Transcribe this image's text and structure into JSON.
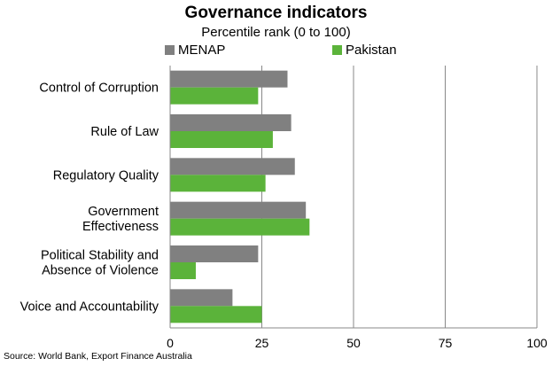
{
  "chart_data": {
    "type": "bar",
    "orientation": "horizontal",
    "title": "Governance indicators",
    "subtitle": "Percentile rank (0 to 100)",
    "categories": [
      [
        "Control of Corruption"
      ],
      [
        "Rule of Law"
      ],
      [
        "Regulatory Quality"
      ],
      [
        "Government",
        "Effectiveness"
      ],
      [
        "Political Stability and",
        "Absence of Violence"
      ],
      [
        "Voice and Accountability"
      ]
    ],
    "series": [
      {
        "name": "MENAP",
        "color": "#808080",
        "values": [
          32,
          33,
          34,
          37,
          24,
          17
        ]
      },
      {
        "name": "Pakistan",
        "color": "#5bb33a",
        "values": [
          24,
          28,
          26,
          38,
          7,
          25
        ]
      }
    ],
    "xlim": [
      0,
      100
    ],
    "xticks": [
      "0",
      "25",
      "50",
      "75",
      "100"
    ],
    "grid": "vertical",
    "legend_position": "top",
    "source": "Source: World Bank, Export Finance Australia"
  }
}
